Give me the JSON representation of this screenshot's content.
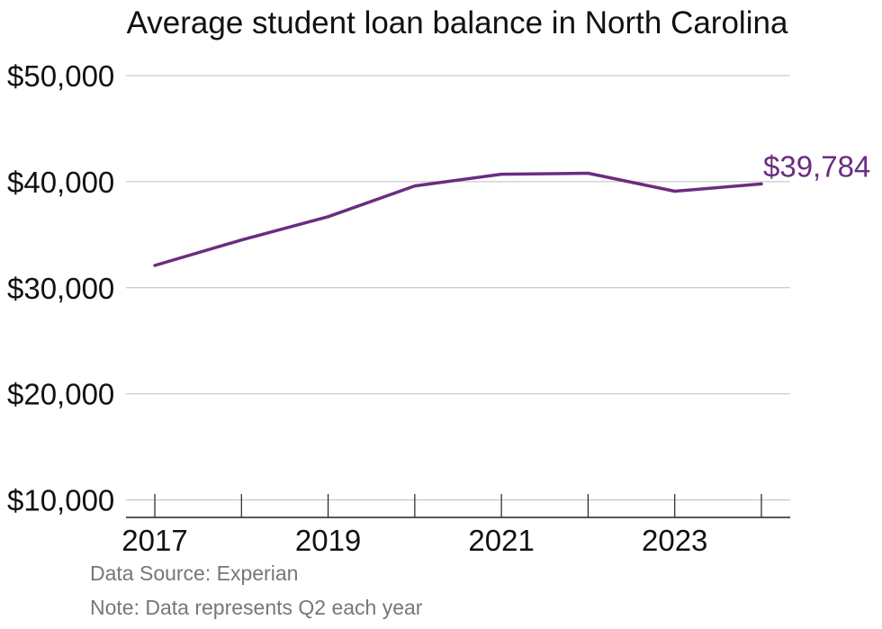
{
  "chart_data": {
    "type": "line",
    "title": "Average student loan balance in North Carolina",
    "xlabel": "",
    "ylabel": "",
    "x": [
      2017,
      2018,
      2019,
      2020,
      2021,
      2022,
      2023,
      2024
    ],
    "series": [
      {
        "values": [
          32100,
          34500,
          36700,
          39600,
          40700,
          40800,
          39100,
          39784
        ]
      }
    ],
    "end_label": "$39,784",
    "y_ticks": [
      "$10,000",
      "$20,000",
      "$30,000",
      "$40,000",
      "$50,000"
    ],
    "y_tick_values": [
      10000,
      20000,
      30000,
      40000,
      50000
    ],
    "x_tick_labels": [
      "2017",
      "2019",
      "2021",
      "2023"
    ],
    "x_tick_label_values": [
      2017,
      2019,
      2021,
      2023
    ],
    "ylim": [
      0,
      50000
    ],
    "grid": true,
    "colors": {
      "line": "#6b2c80",
      "grid": "#bdbdbd",
      "axis": "#222222"
    }
  },
  "notes": {
    "source": "Data Source: Experian",
    "note": "Note: Data represents Q2 each year"
  }
}
